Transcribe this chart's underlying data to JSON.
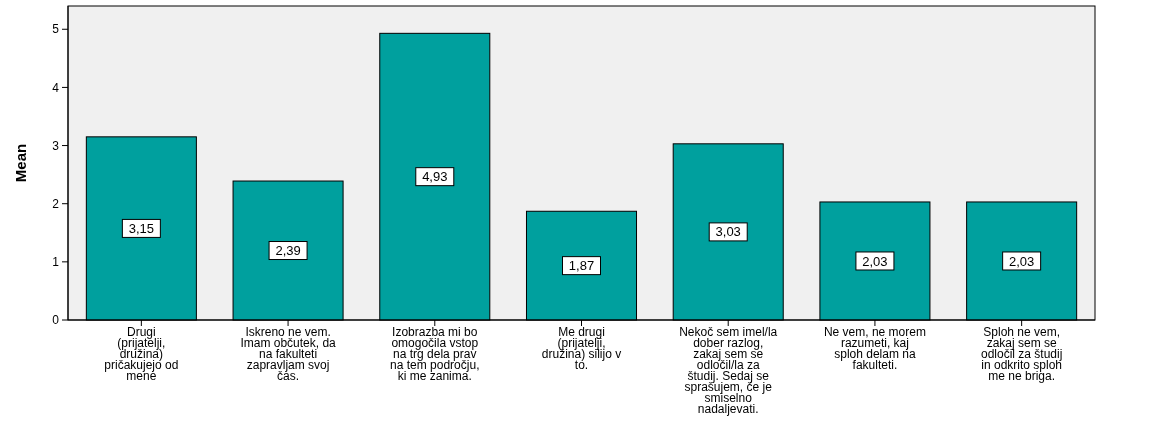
{
  "chart_data": {
    "type": "bar",
    "ylabel": "Mean",
    "categories": [
      "Drugi (prijatelji, družina) pričakujejo od mene",
      "Iskreno ne vem. Imam občutek, da na fakulteti zapravljam svoj čas.",
      "Izobrazba mi bo omogočila vstop na trg dela prav na tem področju, ki me zanima.",
      "Me drugi (prijatelji, družina) silijo v to.",
      "Nekoč sem imel/la dober razlog, zakaj sem se odločil/la za študij. Sedaj se sprašujem, če je smiselno nadaljevati.",
      "Ne vem, ne morem razumeti, kaj sploh delam na fakulteti.",
      "Sploh ne vem, zakaj sem se odločil za študij in odkrito sploh me ne briga."
    ],
    "values": [
      3.15,
      2.39,
      4.93,
      1.87,
      3.03,
      2.03,
      2.03
    ],
    "value_labels": [
      "3,15",
      "2,39",
      "4,93",
      "1,87",
      "3,03",
      "2,03",
      "2,03"
    ],
    "color": "#00a09e",
    "ylim": [
      0,
      5.4
    ],
    "yticks": [
      0,
      1,
      2,
      3,
      4,
      5
    ],
    "grid": false
  }
}
